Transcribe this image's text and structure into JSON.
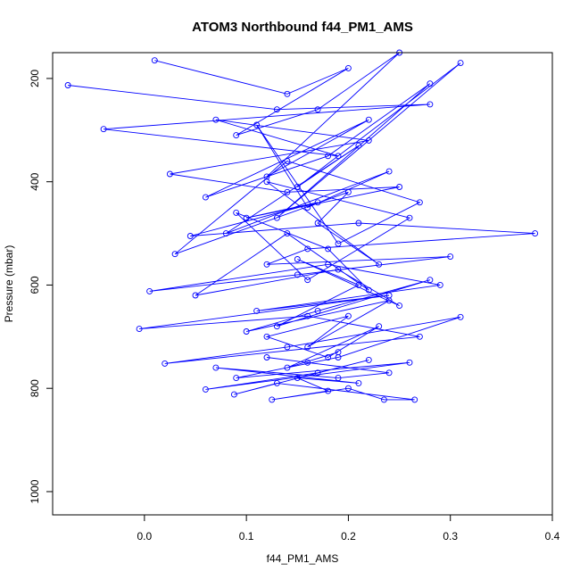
{
  "chart_data": {
    "type": "line",
    "title": "ATOM3 Northbound f44_PM1_AMS",
    "xlabel": "f44_PM1_AMS",
    "ylabel": "Pressure (mbar)",
    "xlim": [
      -0.09,
      0.4
    ],
    "ylim": [
      1045,
      150
    ],
    "y_reversed": true,
    "grid": false,
    "x_ticks": [
      0.0,
      0.1,
      0.2,
      0.3,
      0.4
    ],
    "x_tick_labels": [
      "0.0",
      "0.1",
      "0.2",
      "0.3",
      "0.4"
    ],
    "y_ticks": [
      200,
      400,
      600,
      800,
      1000
    ],
    "y_tick_labels": [
      "200",
      "400",
      "600",
      "800",
      "1000"
    ],
    "colors": {
      "series": "#0000ff",
      "axes": "#000000"
    },
    "series": [
      {
        "style": "lines+open-circles",
        "x": [
          0.01,
          0.14,
          0.2,
          0.09,
          0.17,
          0.25,
          0.12,
          0.22,
          0.06,
          0.18,
          0.28,
          0.13,
          0.31,
          0.15,
          0.21,
          0.08,
          0.24,
          0.16,
          0.11,
          0.19,
          0.27,
          0.14,
          0.03,
          0.2,
          0.17,
          0.23,
          0.12,
          0.26,
          0.16,
          0.09,
          0.18,
          0.22,
          0.14,
          0.05,
          0.19,
          0.25,
          0.15,
          0.21,
          0.13,
          0.28,
          0.17,
          0.1,
          0.24,
          0.16,
          0.2,
          0.12,
          0.18,
          0.23,
          0.14,
          0.19
        ],
        "y": [
          165,
          230,
          180,
          310,
          260,
          150,
          390,
          280,
          430,
          350,
          210,
          470,
          170,
          410,
          330,
          500,
          380,
          450,
          290,
          520,
          440,
          360,
          540,
          420,
          480,
          560,
          400,
          470,
          590,
          460,
          530,
          610,
          500,
          620,
          570,
          640,
          550,
          600,
          680,
          590,
          650,
          690,
          630,
          720,
          660,
          700,
          740,
          680,
          760,
          730
        ]
      },
      {
        "style": "lines+open-circles",
        "x": [
          -0.075,
          0.13,
          0.28,
          -0.04,
          0.19,
          0.07,
          0.22,
          0.025,
          0.14,
          0.25,
          0.1,
          0.17,
          0.045,
          0.21,
          0.383,
          0.16,
          0.12,
          0.3,
          0.15,
          0.005,
          0.18,
          0.29,
          0.11,
          0.24,
          -0.005,
          0.16,
          0.27,
          0.02,
          0.14,
          0.31,
          0.19,
          0.09,
          0.26,
          0.06,
          0.17,
          0.22,
          0.088,
          0.13,
          0.265,
          0.235,
          0.2,
          0.125,
          0.18,
          0.15,
          0.21,
          0.07,
          0.19,
          0.24,
          0.16,
          0.12
        ],
        "y": [
          213,
          260,
          250,
          298,
          350,
          280,
          320,
          385,
          420,
          410,
          470,
          440,
          505,
          480,
          500,
          530,
          560,
          545,
          580,
          612,
          560,
          600,
          650,
          620,
          685,
          660,
          700,
          752,
          720,
          662,
          740,
          780,
          750,
          802,
          770,
          745,
          812,
          790,
          822,
          822,
          800,
          822,
          805,
          780,
          790,
          760,
          780,
          770,
          750,
          740
        ]
      }
    ]
  }
}
